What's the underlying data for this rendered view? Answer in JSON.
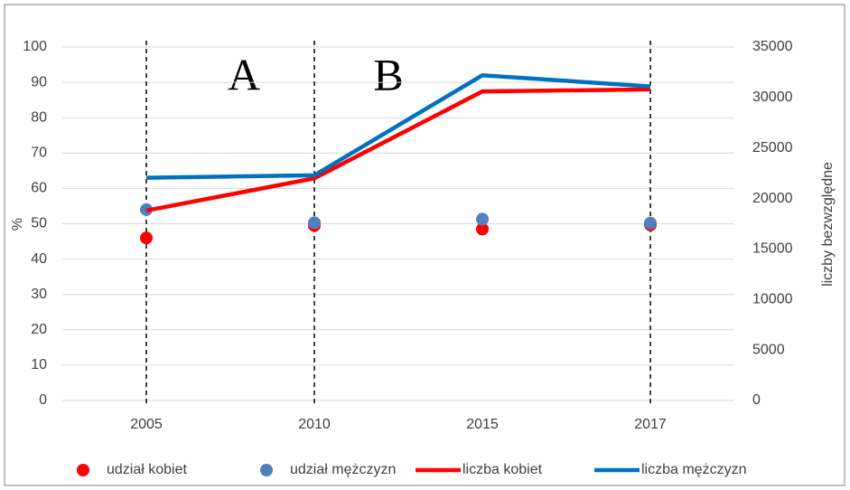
{
  "chart_data": {
    "type": "line",
    "categories": [
      "2005",
      "2010",
      "2015",
      "2017"
    ],
    "ylabel": "%",
    "y2label": "liczby bezwzględne",
    "ylim": [
      0,
      100
    ],
    "yticks": [
      0,
      10,
      20,
      30,
      40,
      50,
      60,
      70,
      80,
      90,
      100
    ],
    "y2lim": [
      0,
      35000
    ],
    "y2ticks": [
      0,
      5000,
      10000,
      15000,
      20000,
      25000,
      30000,
      35000
    ],
    "grid": true,
    "legend": "bottom",
    "annotations": [
      "A",
      "B"
    ],
    "series": [
      {
        "name": "udział kobiet",
        "type": "scatter",
        "color": "#ff0000",
        "values": [
          46,
          49.5,
          48.5,
          49.7
        ]
      },
      {
        "name": "udział mężczyzn",
        "type": "scatter",
        "color": "#4f81bd",
        "values": [
          54,
          50.3,
          51.3,
          50.2
        ]
      },
      {
        "name": "liczba kobiet",
        "type": "line",
        "axis": "y2",
        "color": "#ff0000",
        "values": [
          18800,
          22000,
          30600,
          30800
        ]
      },
      {
        "name": "liczba mężczyzn",
        "type": "line",
        "axis": "y2",
        "color": "#0070c0",
        "values": [
          22050,
          22300,
          32200,
          31100
        ]
      }
    ]
  }
}
